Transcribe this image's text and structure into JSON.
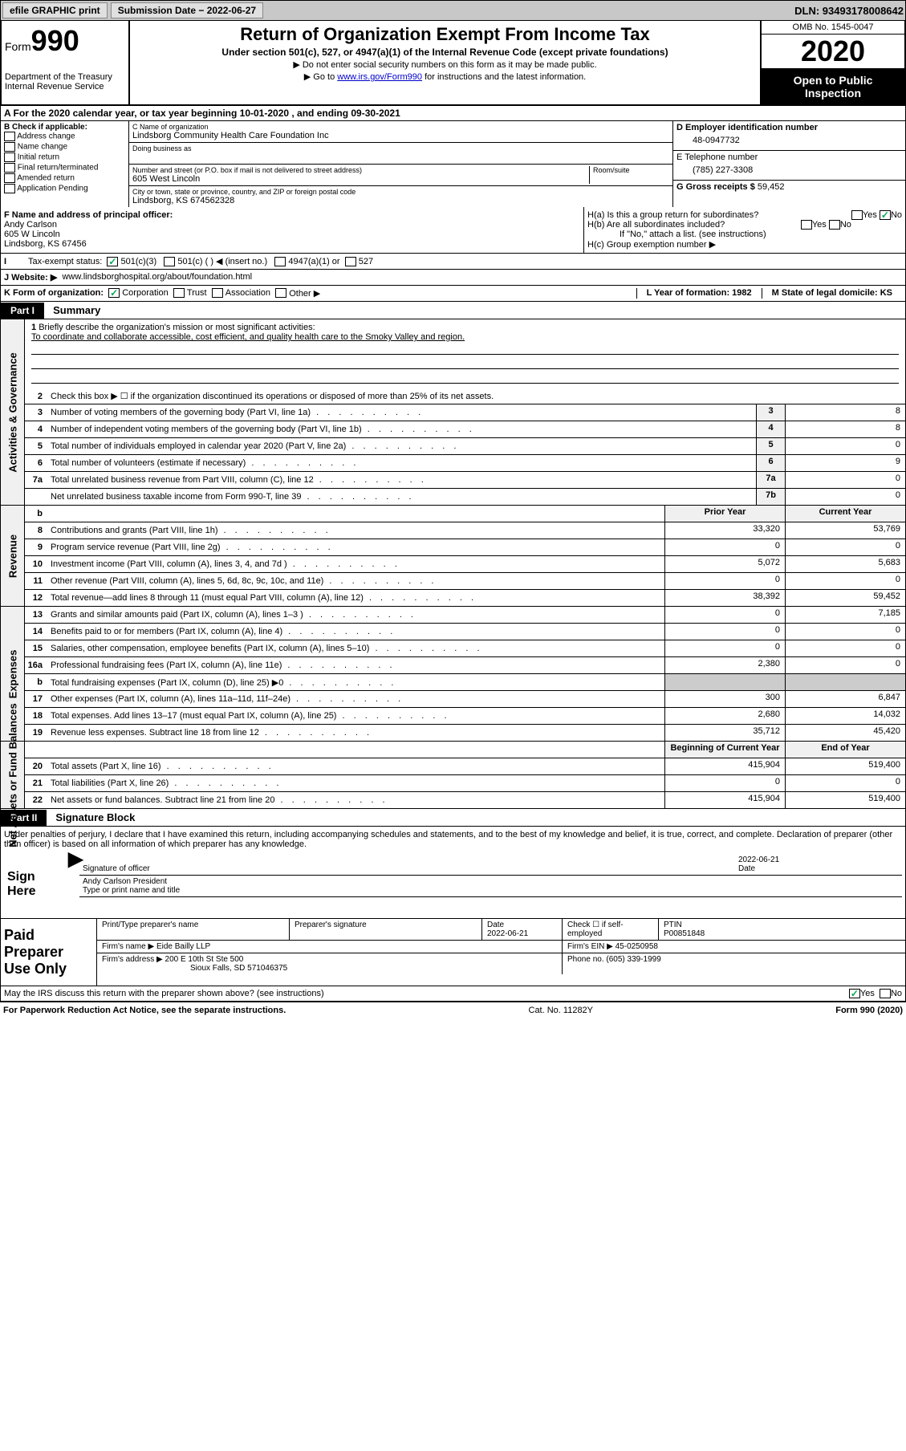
{
  "toolbar": {
    "efile": "efile GRAPHIC print",
    "sub_label": "Submission Date − 2022-06-27",
    "dln": "DLN: 93493178008642"
  },
  "header": {
    "form_word": "Form",
    "form_num": "990",
    "dept": "Department of the Treasury",
    "irs": "Internal Revenue Service",
    "title": "Return of Organization Exempt From Income Tax",
    "subtitle": "Under section 501(c), 527, or 4947(a)(1) of the Internal Revenue Code (except private foundations)",
    "note1": "▶ Do not enter social security numbers on this form as it may be made public.",
    "note2_pre": "▶ Go to ",
    "note2_link": "www.irs.gov/Form990",
    "note2_post": " for instructions and the latest information.",
    "omb": "OMB No. 1545-0047",
    "year": "2020",
    "open": "Open to Public Inspection"
  },
  "rowA": "A For the 2020 calendar year, or tax year beginning 10-01-2020   , and ending 09-30-2021",
  "boxB": {
    "title": "B Check if applicable:",
    "opts": [
      "Address change",
      "Name change",
      "Initial return",
      "Final return/terminated",
      "Amended return",
      "Application Pending"
    ]
  },
  "boxC": {
    "name_lbl": "C Name of organization",
    "name": "Lindsborg Community Health Care Foundation Inc",
    "dba_lbl": "Doing business as",
    "addr_lbl": "Number and street (or P.O. box if mail is not delivered to street address)",
    "room_lbl": "Room/suite",
    "addr": "605 West Lincoln",
    "city_lbl": "City or town, state or province, country, and ZIP or foreign postal code",
    "city": "Lindsborg, KS  674562328"
  },
  "boxD": {
    "lbl": "D Employer identification number",
    "val": "48-0947732"
  },
  "boxE": {
    "lbl": "E Telephone number",
    "val": "(785) 227-3308"
  },
  "boxG": {
    "lbl": "G Gross receipts $",
    "val": "59,452"
  },
  "boxF": {
    "lbl": "F Name and address of principal officer:",
    "name": "Andy Carlson",
    "addr": "605 W Lincoln",
    "city": "Lindsborg, KS  67456"
  },
  "boxH": {
    "a": "H(a)  Is this a group return for subordinates?",
    "b": "H(b)  Are all subordinates included?",
    "b_note": "If \"No,\" attach a list. (see instructions)",
    "c": "H(c)  Group exemption number ▶"
  },
  "rowI": {
    "lbl": "Tax-exempt status:",
    "opts": [
      "501(c)(3)",
      "501(c) (  ) ◀ (insert no.)",
      "4947(a)(1) or",
      "527"
    ]
  },
  "rowJ": {
    "lbl": "J Website: ▶",
    "val": "www.lindsborghospital.org/about/foundation.html"
  },
  "rowK": {
    "lbl": "K Form of organization:",
    "opts": [
      "Corporation",
      "Trust",
      "Association",
      "Other ▶"
    ],
    "L": "L Year of formation: 1982",
    "M": "M State of legal domicile: KS"
  },
  "part1": {
    "hdr": "Part I",
    "title": "Summary"
  },
  "summary": {
    "line1_lbl": "Briefly describe the organization's mission or most significant activities:",
    "line1_val": "To coordinate and collaborate accessible, cost efficient, and quality health care to the Smoky Valley and region.",
    "line2": "Check this box ▶ ☐ if the organization discontinued its operations or disposed of more than 25% of its net assets.",
    "rows_top": [
      {
        "n": "3",
        "d": "Number of voting members of the governing body (Part VI, line 1a)",
        "k": "3",
        "v": "8"
      },
      {
        "n": "4",
        "d": "Number of independent voting members of the governing body (Part VI, line 1b)",
        "k": "4",
        "v": "8"
      },
      {
        "n": "5",
        "d": "Total number of individuals employed in calendar year 2020 (Part V, line 2a)",
        "k": "5",
        "v": "0"
      },
      {
        "n": "6",
        "d": "Total number of volunteers (estimate if necessary)",
        "k": "6",
        "v": "9"
      },
      {
        "n": "7a",
        "d": "Total unrelated business revenue from Part VIII, column (C), line 12",
        "k": "7a",
        "v": "0"
      },
      {
        "n": "",
        "d": "Net unrelated business taxable income from Form 990-T, line 39",
        "k": "7b",
        "v": "0"
      }
    ],
    "col_prior": "Prior Year",
    "col_curr": "Current Year",
    "revenue": [
      {
        "n": "8",
        "d": "Contributions and grants (Part VIII, line 1h)",
        "p": "33,320",
        "c": "53,769"
      },
      {
        "n": "9",
        "d": "Program service revenue (Part VIII, line 2g)",
        "p": "0",
        "c": "0"
      },
      {
        "n": "10",
        "d": "Investment income (Part VIII, column (A), lines 3, 4, and 7d )",
        "p": "5,072",
        "c": "5,683"
      },
      {
        "n": "11",
        "d": "Other revenue (Part VIII, column (A), lines 5, 6d, 8c, 9c, 10c, and 11e)",
        "p": "0",
        "c": "0"
      },
      {
        "n": "12",
        "d": "Total revenue—add lines 8 through 11 (must equal Part VIII, column (A), line 12)",
        "p": "38,392",
        "c": "59,452"
      }
    ],
    "expenses": [
      {
        "n": "13",
        "d": "Grants and similar amounts paid (Part IX, column (A), lines 1–3 )",
        "p": "0",
        "c": "7,185"
      },
      {
        "n": "14",
        "d": "Benefits paid to or for members (Part IX, column (A), line 4)",
        "p": "0",
        "c": "0"
      },
      {
        "n": "15",
        "d": "Salaries, other compensation, employee benefits (Part IX, column (A), lines 5–10)",
        "p": "0",
        "c": "0"
      },
      {
        "n": "16a",
        "d": "Professional fundraising fees (Part IX, column (A), line 11e)",
        "p": "2,380",
        "c": "0"
      },
      {
        "n": "b",
        "d": "Total fundraising expenses (Part IX, column (D), line 25) ▶0",
        "p": "",
        "c": ""
      },
      {
        "n": "17",
        "d": "Other expenses (Part IX, column (A), lines 11a–11d, 11f–24e)",
        "p": "300",
        "c": "6,847"
      },
      {
        "n": "18",
        "d": "Total expenses. Add lines 13–17 (must equal Part IX, column (A), line 25)",
        "p": "2,680",
        "c": "14,032"
      },
      {
        "n": "19",
        "d": "Revenue less expenses. Subtract line 18 from line 12",
        "p": "35,712",
        "c": "45,420"
      }
    ],
    "col_beg": "Beginning of Current Year",
    "col_end": "End of Year",
    "net": [
      {
        "n": "20",
        "d": "Total assets (Part X, line 16)",
        "p": "415,904",
        "c": "519,400"
      },
      {
        "n": "21",
        "d": "Total liabilities (Part X, line 26)",
        "p": "0",
        "c": "0"
      },
      {
        "n": "22",
        "d": "Net assets or fund balances. Subtract line 21 from line 20",
        "p": "415,904",
        "c": "519,400"
      }
    ]
  },
  "side_labels": {
    "gov": "Activities & Governance",
    "rev": "Revenue",
    "exp": "Expenses",
    "net": "Net Assets or Fund Balances"
  },
  "part2": {
    "hdr": "Part II",
    "title": "Signature Block"
  },
  "sig": {
    "penalty": "Under penalties of perjury, I declare that I have examined this return, including accompanying schedules and statements, and to the best of my knowledge and belief, it is true, correct, and complete. Declaration of preparer (other than officer) is based on all information of which preparer has any knowledge.",
    "sign_here": "Sign Here",
    "sig_officer": "Signature of officer",
    "date_lbl": "Date",
    "date": "2022-06-21",
    "name": "Andy Carlson President",
    "name_lbl": "Type or print name and title"
  },
  "prep": {
    "title": "Paid Preparer Use Only",
    "h1": "Print/Type preparer's name",
    "h2": "Preparer's signature",
    "h3": "Date",
    "date": "2022-06-21",
    "h4": "Check ☐ if self-employed",
    "h5": "PTIN",
    "ptin": "P00851848",
    "firm_lbl": "Firm's name    ▶",
    "firm": "Eide Bailly LLP",
    "ein_lbl": "Firm's EIN ▶",
    "ein": "45-0250958",
    "addr_lbl": "Firm's address ▶",
    "addr1": "200 E 10th St Ste 500",
    "addr2": "Sioux Falls, SD  571046375",
    "phone_lbl": "Phone no.",
    "phone": "(605) 339-1999"
  },
  "discuss": "May the IRS discuss this return with the preparer shown above? (see instructions)",
  "footer": {
    "left": "For Paperwork Reduction Act Notice, see the separate instructions.",
    "mid": "Cat. No. 11282Y",
    "right": "Form 990 (2020)"
  },
  "colors": {
    "link": "#0000cc",
    "check": "#00aa55"
  }
}
